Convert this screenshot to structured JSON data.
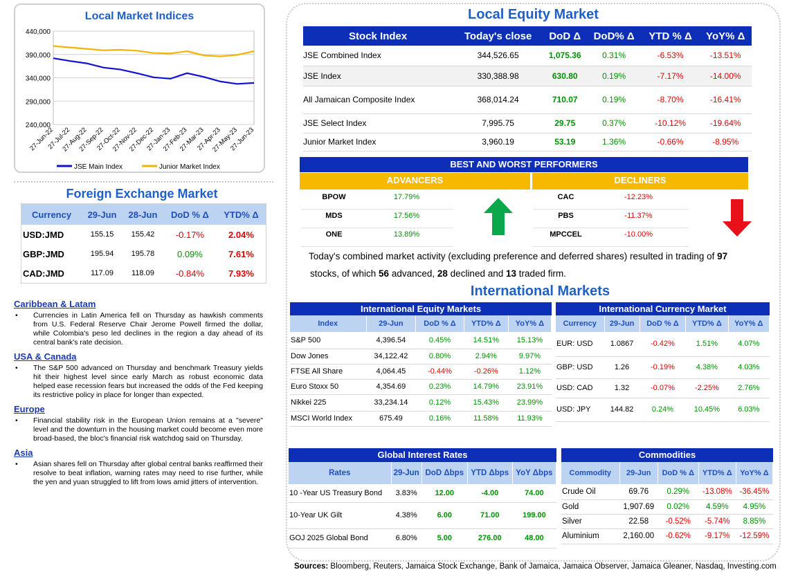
{
  "chart": {
    "title": "Local Market Indices",
    "chart_data": {
      "type": "line",
      "title": "Local Market Indices",
      "ylim": [
        240000,
        440000
      ],
      "yticks": [
        "440,000",
        "390,000",
        "340,000",
        "290,000",
        "240,000"
      ],
      "xticks": [
        "27-Jun-22",
        "27-Jul-22",
        "27-Aug-22",
        "27-Sep-22",
        "27-Oct-22",
        "27-Nov-22",
        "27-Dec-22",
        "27-Jan-23",
        "27-Feb-23",
        "27-Mar-23",
        "27-Apr-23",
        "27-May-23",
        "27-Jun-23"
      ],
      "series": [
        {
          "name": "JSE Main Index",
          "color": "#1010d0",
          "values": [
            382000,
            376000,
            371000,
            362000,
            358000,
            350000,
            341000,
            338000,
            350000,
            342000,
            332000,
            327000,
            329000
          ]
        },
        {
          "name": "Junior Market Index",
          "color": "#f2b400",
          "values": [
            408000,
            405000,
            402000,
            399000,
            400000,
            398000,
            393000,
            392000,
            397000,
            388000,
            386000,
            389000,
            397000
          ]
        }
      ],
      "grid": true,
      "legend": "bottom"
    }
  },
  "fx": {
    "title": "Foreign Exchange Market",
    "headers": [
      "Currency",
      "29-Jun",
      "28-Jun",
      "DoD % Δ",
      "YTD% Δ"
    ],
    "rows": [
      {
        "c": "USD:JMD",
        "a": "155.15",
        "b": "155.42",
        "d": "-0.17%",
        "y": "2.04%"
      },
      {
        "c": "GBP:JMD",
        "a": "195.94",
        "b": "195.78",
        "d": "0.09%",
        "y": "7.61%"
      },
      {
        "c": "CAD:JMD",
        "a": "117.09",
        "b": "118.09",
        "d": "-0.84%",
        "y": "7.93%"
      }
    ]
  },
  "news": [
    {
      "h": "Caribbean & Latam",
      "t": "Currencies in Latin America fell on Thursday as hawkish comments from U.S. Federal Reserve Chair Jerome Powell firmed the dollar, while Colombia's peso led declines in the region a day ahead of its central bank's rate decision."
    },
    {
      "h": "USA & Canada",
      "t": "The S&P 500 advanced on Thursday and benchmark Treasury yields hit their highest level since early March as robust economic data helped ease recession fears but increased the odds of the Fed keeping its restrictive policy in place for longer than expected."
    },
    {
      "h": "Europe",
      "t": "Financial stability risk in the European Union remains at a \"severe\" level and the downturn in the housing market could become even more broad-based, the bloc's financial risk watchdog said on Thursday."
    },
    {
      "h": "Asia",
      "t": "Asian shares fell on Thursday after global central banks reaffirmed their resolve to beat inflation, warning rates may need to rise further, while the yen and yuan struggled to lift from lows amid jitters of intervention."
    }
  ],
  "local": {
    "title": "Local Equity Market",
    "headers": [
      "Stock Index",
      "Today's close",
      "DoD  Δ",
      "DoD% Δ",
      "YTD % Δ",
      "YoY% Δ"
    ],
    "rows": [
      {
        "n": "JSE Combined Index",
        "c": "344,526.65",
        "d": "1,075.36",
        "p": "0.31%",
        "y": "-6.53%",
        "o": "-13.51%"
      },
      {
        "n": "JSE Index",
        "c": "330,388.98",
        "d": "630.80",
        "p": "0.19%",
        "y": "-7.17%",
        "o": "-14.00%"
      },
      {
        "n": "All Jamaican Composite Index",
        "c": "368,014.24",
        "d": "710.07",
        "p": "0.19%",
        "y": "-8.70%",
        "o": "-16.41%"
      },
      {
        "n": "JSE Select Index",
        "c": "7,995.75",
        "d": "29.75",
        "p": "0.37%",
        "y": "-10.12%",
        "o": "-19.64%"
      },
      {
        "n": "Junior Market Index",
        "c": "3,960.19",
        "d": "53.19",
        "p": "1.36%",
        "y": "-0.66%",
        "o": "-8.95%"
      }
    ]
  },
  "performers": {
    "title": "BEST AND WORST PERFORMERS",
    "adv_label": "ADVANCERS",
    "dec_label": "DECLINERS",
    "advancers": [
      {
        "n": "BPOW",
        "v": "17.79%"
      },
      {
        "n": "MDS",
        "v": "17.56%"
      },
      {
        "n": "ONE",
        "v": "13.89%"
      }
    ],
    "decliners": [
      {
        "n": "CAC",
        "v": "-12.23%"
      },
      {
        "n": "PBS",
        "v": "-11.37%"
      },
      {
        "n": "MPCCEL",
        "v": "-10.00%"
      }
    ]
  },
  "summary": {
    "pre": "Today's combined market activity (excluding preference and deferred shares) resulted in trading of ",
    "stocks": "97",
    "mid1": "stocks, of which ",
    "adv": "56",
    "mid2": " advanced, ",
    "dec": "28",
    "mid3": " declined and ",
    "firm": "13",
    "post": " traded firm."
  },
  "intl_title": "International Markets",
  "ieq": {
    "title": "International Equity Markets",
    "headers": [
      "Index",
      "29-Jun",
      "DoD % Δ",
      "YTD% Δ",
      "YoY% Δ"
    ],
    "rows": [
      {
        "n": "S&P 500",
        "a": "4,396.54",
        "d": "0.45%",
        "y": "14.51%",
        "o": "15.13%"
      },
      {
        "n": "Dow Jones",
        "a": "34,122.42",
        "d": "0.80%",
        "y": "2.94%",
        "o": "9.97%"
      },
      {
        "n": "FTSE All Share",
        "a": "4,064.45",
        "d": "-0.44%",
        "y": "-0.26%",
        "o": "1.12%"
      },
      {
        "n": "Euro Stoxx 50",
        "a": "4,354.69",
        "d": "0.23%",
        "y": "14.79%",
        "o": "23.91%"
      },
      {
        "n": "Nikkei 225",
        "a": "33,234.14",
        "d": "0.12%",
        "y": "15.43%",
        "o": "23.99%"
      },
      {
        "n": "MSCI World Index",
        "a": "675.49",
        "d": "0.16%",
        "y": "11.58%",
        "o": "11.93%"
      }
    ]
  },
  "icur": {
    "title": "International Currency Market",
    "headers": [
      "Currency",
      "29-Jun",
      "DoD % Δ",
      "YTD% Δ",
      "YoY% Δ"
    ],
    "rows": [
      {
        "n": "EUR: USD",
        "a": "1.0867",
        "d": "-0.42%",
        "y": "1.51%",
        "o": "4.07%"
      },
      {
        "n": "GBP: USD",
        "a": "1.26",
        "d": "-0.19%",
        "y": "4.38%",
        "o": "4.03%"
      },
      {
        "n": "USD: CAD",
        "a": "1.32",
        "d": "-0.07%",
        "y": "-2.25%",
        "o": "2.76%"
      },
      {
        "n": "USD: JPY",
        "a": "144.82",
        "d": "0.24%",
        "y": "10.45%",
        "o": "6.03%"
      }
    ]
  },
  "rates": {
    "title": "Global Interest Rates",
    "headers": [
      "Rates",
      "29-Jun",
      "DoD Δbps",
      "YTD Δbps",
      "YoY Δbps"
    ],
    "rows": [
      {
        "n": "10 -Year US Treasury Bond",
        "a": "3.83%",
        "d": "12.00",
        "y": "-4.00",
        "o": "74.00"
      },
      {
        "n": "10-Year UK Gilt",
        "a": "4.38%",
        "d": "6.00",
        "y": "71.00",
        "o": "199.00"
      },
      {
        "n": "GOJ 2025 Global Bond",
        "a": "6.80%",
        "d": "5.00",
        "y": "276.00",
        "o": "48.00"
      }
    ]
  },
  "comm": {
    "title": "Commodities",
    "headers": [
      "Commodity",
      "29-Jun",
      "DoD % Δ",
      "YTD% Δ",
      "YoY% Δ"
    ],
    "rows": [
      {
        "n": "Crude Oil",
        "a": "69.76",
        "d": "0.29%",
        "y": "-13.08%",
        "o": "-36.45%"
      },
      {
        "n": "Gold",
        "a": "1,907.69",
        "d": "0.02%",
        "y": "4.59%",
        "o": "4.95%"
      },
      {
        "n": "Silver",
        "a": "22.58",
        "d": "-0.52%",
        "y": "-5.74%",
        "o": "8.85%"
      },
      {
        "n": "Aluminium",
        "a": "2,160.00",
        "d": "-0.62%",
        "y": "-9.17%",
        "o": "-12.59%"
      }
    ]
  },
  "sources": {
    "label": "Sources:",
    "text": " Bloomberg, Reuters, Jamaica Stock Exchange, Bank of Jamaica, Jamaica Observer, Jamaica Gleaner, Nasdaq, Investing.com"
  }
}
